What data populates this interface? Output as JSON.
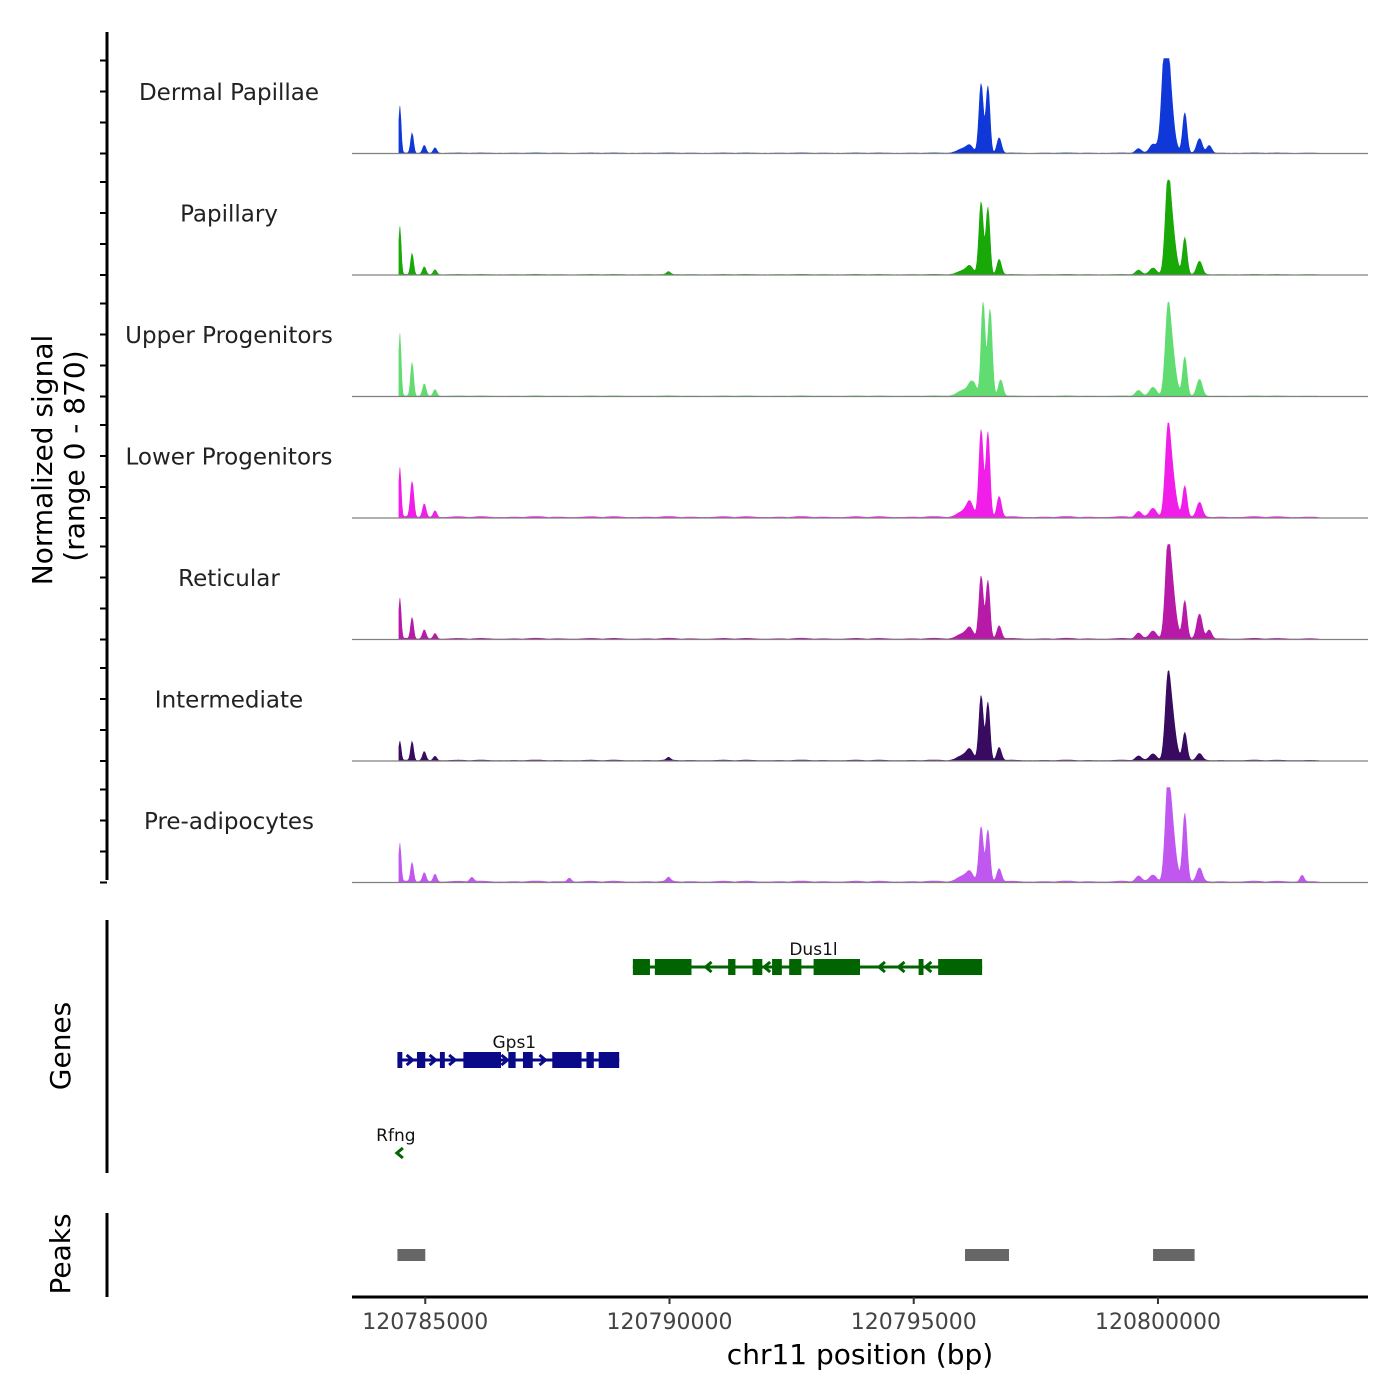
{
  "chart_data": {
    "type": "area",
    "title": "",
    "y_axis_label_line1": "Normalized signal",
    "y_axis_label_line2": "(range 0 - 870)",
    "y_range": [
      0,
      870
    ],
    "xlabel": "chr11 position (bp)",
    "x_range": [
      120783500,
      120804300
    ],
    "x_ticks": [
      {
        "value": 120785000,
        "label": "120785000"
      },
      {
        "value": 120790000,
        "label": "120790000"
      },
      {
        "value": 120795000,
        "label": "120795000"
      },
      {
        "value": 120800000,
        "label": "120800000"
      }
    ],
    "data_start": 120784460,
    "data_end": 120803300,
    "series": [
      {
        "name": "Dermal Papillae",
        "color": "#1038D8",
        "baseline": 6,
        "peaks": [
          [
            120784480,
            420,
            25
          ],
          [
            120784730,
            180,
            30
          ],
          [
            120784980,
            70,
            35
          ],
          [
            120785200,
            50,
            35
          ],
          [
            120796150,
            60,
            70
          ],
          [
            120796380,
            620,
            45
          ],
          [
            120796520,
            600,
            40
          ],
          [
            120796750,
            140,
            45
          ],
          [
            120796000,
            40,
            110
          ],
          [
            120799600,
            40,
            60
          ],
          [
            120799900,
            80,
            70
          ],
          [
            120800150,
            730,
            70
          ],
          [
            120800220,
            520,
            90
          ],
          [
            120800550,
            360,
            45
          ],
          [
            120800850,
            130,
            55
          ],
          [
            120801050,
            70,
            50
          ]
        ]
      },
      {
        "name": "Papillary",
        "color": "#18A808",
        "baseline": 6,
        "peaks": [
          [
            120784480,
            430,
            25
          ],
          [
            120784730,
            190,
            30
          ],
          [
            120784980,
            70,
            35
          ],
          [
            120785200,
            45,
            35
          ],
          [
            120789980,
            25,
            40
          ],
          [
            120796150,
            70,
            70
          ],
          [
            120796380,
            650,
            45
          ],
          [
            120796520,
            600,
            40
          ],
          [
            120796750,
            140,
            45
          ],
          [
            120796000,
            35,
            110
          ],
          [
            120799600,
            40,
            60
          ],
          [
            120799900,
            60,
            70
          ],
          [
            120800200,
            640,
            55
          ],
          [
            120800280,
            420,
            80
          ],
          [
            120800550,
            330,
            45
          ],
          [
            120800850,
            120,
            55
          ]
        ]
      },
      {
        "name": "Upper Progenitors",
        "color": "#60DC70",
        "baseline": 7,
        "peaks": [
          [
            120784480,
            560,
            25
          ],
          [
            120784730,
            300,
            30
          ],
          [
            120784980,
            110,
            35
          ],
          [
            120785200,
            60,
            35
          ],
          [
            120796200,
            130,
            80
          ],
          [
            120796420,
            850,
            40
          ],
          [
            120796560,
            780,
            45
          ],
          [
            120796780,
            150,
            45
          ],
          [
            120796000,
            50,
            110
          ],
          [
            120799600,
            50,
            60
          ],
          [
            120799900,
            80,
            70
          ],
          [
            120800200,
            580,
            55
          ],
          [
            120800280,
            400,
            80
          ],
          [
            120800550,
            350,
            45
          ],
          [
            120800850,
            150,
            55
          ]
        ]
      },
      {
        "name": "Lower Progenitors",
        "color": "#F01EE8",
        "baseline": 14,
        "peaks": [
          [
            120784480,
            440,
            25
          ],
          [
            120784730,
            320,
            35
          ],
          [
            120784980,
            120,
            35
          ],
          [
            120785200,
            60,
            35
          ],
          [
            120796150,
            130,
            70
          ],
          [
            120796380,
            780,
            45
          ],
          [
            120796520,
            760,
            40
          ],
          [
            120796750,
            190,
            45
          ],
          [
            120796000,
            50,
            110
          ],
          [
            120799600,
            50,
            60
          ],
          [
            120799900,
            80,
            70
          ],
          [
            120800200,
            600,
            55
          ],
          [
            120800280,
            380,
            80
          ],
          [
            120800550,
            280,
            45
          ],
          [
            120800850,
            130,
            55
          ]
        ]
      },
      {
        "name": "Reticular",
        "color": "#B81AA8",
        "baseline": 12,
        "peaks": [
          [
            120784480,
            360,
            25
          ],
          [
            120784730,
            190,
            30
          ],
          [
            120784980,
            80,
            35
          ],
          [
            120785200,
            50,
            35
          ],
          [
            120796150,
            90,
            70
          ],
          [
            120796380,
            560,
            45
          ],
          [
            120796520,
            520,
            40
          ],
          [
            120796750,
            120,
            45
          ],
          [
            120796000,
            45,
            110
          ],
          [
            120799600,
            50,
            60
          ],
          [
            120799900,
            70,
            70
          ],
          [
            120800200,
            610,
            55
          ],
          [
            120800280,
            460,
            80
          ],
          [
            120800550,
            340,
            45
          ],
          [
            120800850,
            220,
            55
          ],
          [
            120801050,
            80,
            50
          ]
        ]
      },
      {
        "name": "Intermediate",
        "color": "#380A60",
        "baseline": 9,
        "peaks": [
          [
            120784480,
            170,
            25
          ],
          [
            120784730,
            170,
            30
          ],
          [
            120784980,
            80,
            35
          ],
          [
            120785200,
            40,
            35
          ],
          [
            120789980,
            25,
            40
          ],
          [
            120796150,
            90,
            70
          ],
          [
            120796380,
            580,
            45
          ],
          [
            120796520,
            520,
            40
          ],
          [
            120796750,
            120,
            45
          ],
          [
            120796000,
            45,
            110
          ],
          [
            120799600,
            40,
            60
          ],
          [
            120799900,
            60,
            70
          ],
          [
            120800200,
            540,
            55
          ],
          [
            120800280,
            400,
            80
          ],
          [
            120800550,
            250,
            45
          ],
          [
            120800850,
            60,
            55
          ]
        ]
      },
      {
        "name": "Pre-adipocytes",
        "color": "#C058F0",
        "baseline": 14,
        "peaks": [
          [
            120784480,
            340,
            25
          ],
          [
            120784730,
            170,
            30
          ],
          [
            120784980,
            80,
            35
          ],
          [
            120785200,
            70,
            35
          ],
          [
            120785950,
            40,
            40
          ],
          [
            120787950,
            35,
            40
          ],
          [
            120789980,
            35,
            40
          ],
          [
            120796150,
            80,
            70
          ],
          [
            120796380,
            490,
            45
          ],
          [
            120796520,
            460,
            40
          ],
          [
            120796750,
            120,
            45
          ],
          [
            120796000,
            50,
            110
          ],
          [
            120799600,
            50,
            60
          ],
          [
            120799900,
            60,
            70
          ],
          [
            120800200,
            660,
            55
          ],
          [
            120800280,
            480,
            80
          ],
          [
            120800550,
            610,
            45
          ],
          [
            120800850,
            120,
            55
          ],
          [
            120802950,
            60,
            40
          ]
        ]
      }
    ],
    "genes_label": "Genes",
    "genes": [
      {
        "name": "Dus1l",
        "color": "#006400",
        "strand": "-",
        "start": 120789250,
        "end": 120796400,
        "exons": [
          [
            120789250,
            120789600
          ],
          [
            120789700,
            120790450
          ],
          [
            120791200,
            120791350
          ],
          [
            120791700,
            120791900
          ],
          [
            120792100,
            120792300
          ],
          [
            120792450,
            120792700
          ],
          [
            120792950,
            120793900
          ],
          [
            120795100,
            120795200
          ],
          [
            120795500,
            120796400
          ]
        ],
        "arrows": [
          120790800,
          120792000,
          120794350,
          120794750,
          120795300
        ]
      },
      {
        "name": "Gps1",
        "color": "#0A0A88",
        "strand": "+",
        "start": 120784430,
        "end": 120788970,
        "exons": [
          [
            120784430,
            120784530
          ],
          [
            120784830,
            120785000
          ],
          [
            120785300,
            120785400
          ],
          [
            120785780,
            120786550
          ],
          [
            120786700,
            120786850
          ],
          [
            120787000,
            120787200
          ],
          [
            120787600,
            120788200
          ],
          [
            120788300,
            120788450
          ],
          [
            120788550,
            120788970
          ]
        ],
        "arrows": [
          120784680,
          120785150,
          120785550,
          120786620,
          120787400
        ]
      },
      {
        "name": "Rfng",
        "color": "#006400",
        "strand": "-",
        "start": 120784430,
        "end": 120784530,
        "exons": [],
        "arrows": [
          120784480
        ]
      }
    ],
    "peaks_label": "Peaks",
    "peak_regions": [
      [
        120784430,
        120785000
      ],
      [
        120796050,
        120796950
      ],
      [
        120799900,
        120800750
      ]
    ]
  }
}
